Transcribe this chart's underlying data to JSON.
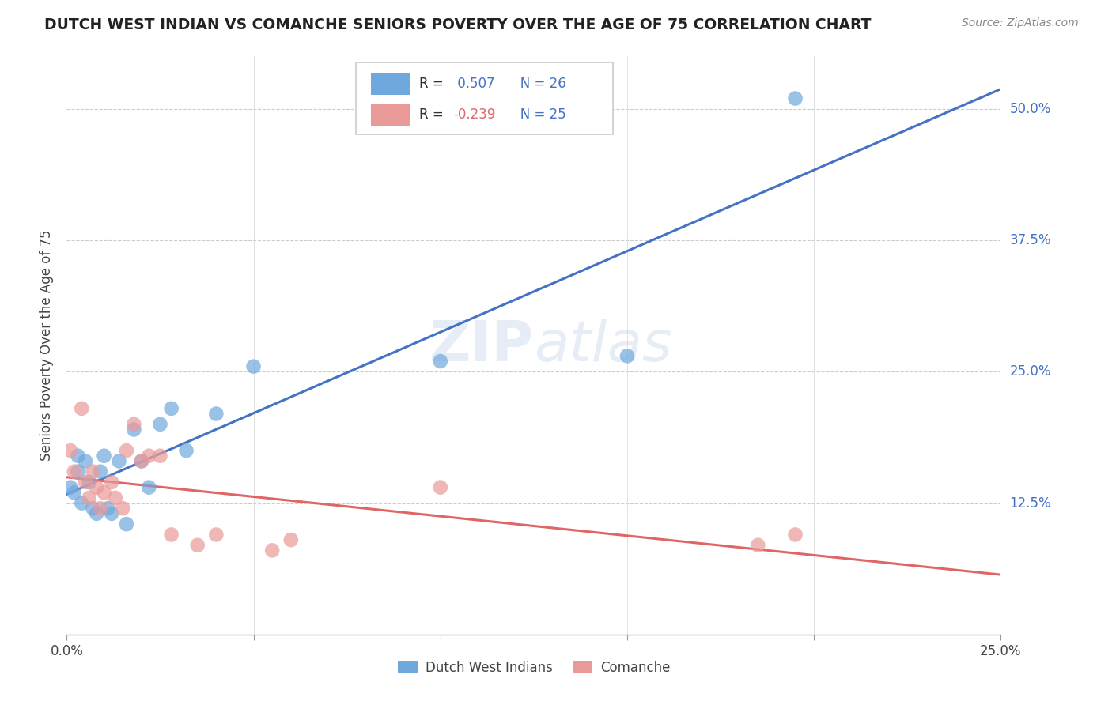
{
  "title": "DUTCH WEST INDIAN VS COMANCHE SENIORS POVERTY OVER THE AGE OF 75 CORRELATION CHART",
  "source": "Source: ZipAtlas.com",
  "ylabel": "Seniors Poverty Over the Age of 75",
  "xlabel_blue": "Dutch West Indians",
  "xlabel_pink": "Comanche",
  "r_blue": 0.507,
  "n_blue": 26,
  "r_pink": -0.239,
  "n_pink": 25,
  "xlim": [
    0.0,
    0.25
  ],
  "ylim": [
    0.0,
    0.55
  ],
  "xticks": [
    0.0,
    0.05,
    0.1,
    0.15,
    0.2,
    0.25
  ],
  "xtick_labels": [
    "0.0%",
    "",
    "",
    "",
    "",
    "25.0%"
  ],
  "ytick_vals": [
    0.0,
    0.125,
    0.25,
    0.375,
    0.5
  ],
  "ytick_labels": [
    "",
    "12.5%",
    "25.0%",
    "37.5%",
    "50.0%"
  ],
  "blue_color": "#6fa8dc",
  "pink_color": "#ea9999",
  "blue_line_color": "#4472c4",
  "pink_line_color": "#e06666",
  "watermark": "ZIPatlas",
  "blue_scatter_x": [
    0.001,
    0.002,
    0.003,
    0.003,
    0.004,
    0.005,
    0.006,
    0.007,
    0.008,
    0.009,
    0.01,
    0.011,
    0.012,
    0.014,
    0.016,
    0.018,
    0.02,
    0.022,
    0.025,
    0.028,
    0.032,
    0.04,
    0.05,
    0.1,
    0.15,
    0.195
  ],
  "blue_scatter_y": [
    0.14,
    0.135,
    0.17,
    0.155,
    0.125,
    0.165,
    0.145,
    0.12,
    0.115,
    0.155,
    0.17,
    0.12,
    0.115,
    0.165,
    0.105,
    0.195,
    0.165,
    0.14,
    0.2,
    0.215,
    0.175,
    0.21,
    0.255,
    0.26,
    0.265,
    0.51
  ],
  "pink_scatter_x": [
    0.001,
    0.002,
    0.004,
    0.005,
    0.006,
    0.007,
    0.008,
    0.009,
    0.01,
    0.012,
    0.013,
    0.015,
    0.016,
    0.018,
    0.02,
    0.022,
    0.025,
    0.028,
    0.035,
    0.04,
    0.055,
    0.06,
    0.1,
    0.185,
    0.195
  ],
  "pink_scatter_y": [
    0.175,
    0.155,
    0.215,
    0.145,
    0.13,
    0.155,
    0.14,
    0.12,
    0.135,
    0.145,
    0.13,
    0.12,
    0.175,
    0.2,
    0.165,
    0.17,
    0.17,
    0.095,
    0.085,
    0.095,
    0.08,
    0.09,
    0.14,
    0.085,
    0.095
  ]
}
